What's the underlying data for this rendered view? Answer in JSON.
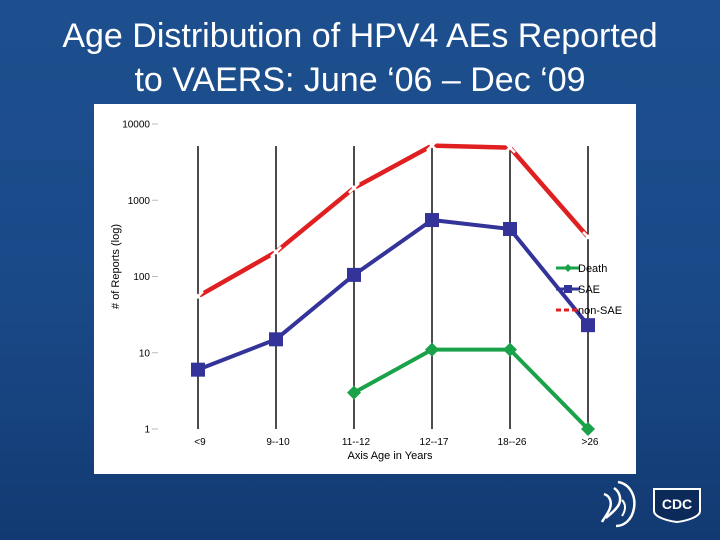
{
  "slide": {
    "title_line1": "Age Distribution of HPV4 AEs Reported",
    "title_line2": "to VAERS: June ‘06 – Dec ‘09"
  },
  "chart_data": {
    "type": "line",
    "title": "",
    "xlabel": "Axis Age in Years",
    "ylabel": "# of Reports (log)",
    "yscale": "log",
    "ylim": [
      1,
      10000
    ],
    "yticks": [
      "1",
      "10",
      "100",
      "1000",
      "10000"
    ],
    "grid": false,
    "legend_position": "right",
    "categories": [
      "<9",
      "9--10",
      "11--12",
      "12--17",
      "18--26",
      ">26"
    ],
    "series": [
      {
        "name": "Death",
        "color": "#19a24a",
        "marker": "diamond",
        "values": [
          null,
          null,
          3,
          11,
          11,
          1
        ]
      },
      {
        "name": "SAE",
        "color": "#333399",
        "marker": "square",
        "values": [
          6,
          15,
          105,
          550,
          420,
          23
        ]
      },
      {
        "name": "non-SAE",
        "color": "#e02020",
        "marker": "x",
        "values": [
          55,
          210,
          1450,
          5200,
          4900,
          330
        ]
      }
    ]
  },
  "logos": {
    "hhs": "hhs-eagle-logo",
    "cdc": "CDC"
  }
}
